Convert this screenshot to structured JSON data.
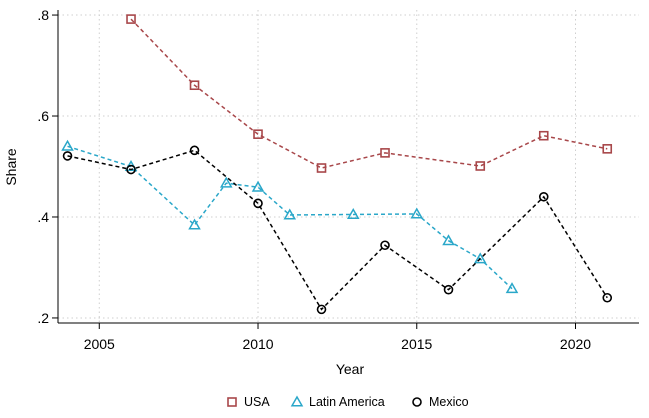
{
  "chart_data": {
    "type": "line",
    "xlabel": "Year",
    "ylabel": "Share",
    "xlim": [
      2003.7,
      2022.0
    ],
    "ylim": [
      0.19,
      0.81
    ],
    "xticks": [
      2005,
      2010,
      2015,
      2020
    ],
    "xtick_labels": [
      "2005",
      "2010",
      "2015",
      "2020"
    ],
    "yticks": [
      0.2,
      0.4,
      0.6,
      0.8
    ],
    "ytick_labels": [
      ".2",
      ".4",
      ".6",
      ".8"
    ],
    "grid": true,
    "legend_position": "bottom",
    "series": [
      {
        "name": "USA",
        "color": "#a8474a",
        "marker": "square",
        "x": [
          2006,
          2008,
          2010,
          2012,
          2014,
          2017,
          2019,
          2021
        ],
        "y": [
          0.792,
          0.661,
          0.564,
          0.497,
          0.527,
          0.501,
          0.561,
          0.535
        ]
      },
      {
        "name": "Latin America",
        "color": "#2aa7c9",
        "marker": "triangle",
        "x": [
          2004,
          2006,
          2008,
          2009,
          2010,
          2011,
          2013,
          2015,
          2016,
          2017,
          2018
        ],
        "y": [
          0.54,
          0.5,
          0.384,
          0.467,
          0.459,
          0.404,
          0.405,
          0.406,
          0.353,
          0.317,
          0.258
        ]
      },
      {
        "name": "Mexico",
        "color": "#000000",
        "marker": "circle",
        "x": [
          2004,
          2006,
          2008,
          2010,
          2012,
          2014,
          2016,
          2019,
          2021
        ],
        "y": [
          0.521,
          0.494,
          0.532,
          0.427,
          0.217,
          0.344,
          0.256,
          0.44,
          0.24
        ]
      }
    ]
  }
}
